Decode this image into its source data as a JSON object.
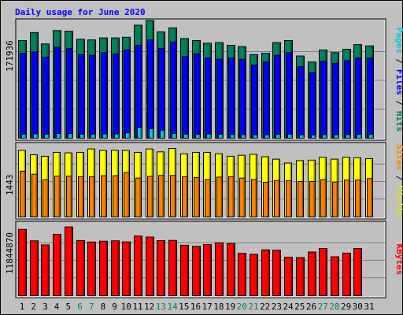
{
  "chart_data": {
    "type": "bar",
    "title": "Daily usage for June 2020",
    "categories": [
      "1",
      "2",
      "3",
      "4",
      "5",
      "6",
      "7",
      "8",
      "9",
      "10",
      "11",
      "12",
      "13",
      "14",
      "15",
      "16",
      "17",
      "18",
      "19",
      "20",
      "21",
      "22",
      "23",
      "24",
      "25",
      "26",
      "27",
      "28",
      "29",
      "30",
      "31"
    ],
    "weekend_days": [
      6,
      7,
      13,
      14,
      20,
      21,
      27,
      28
    ],
    "panels": [
      {
        "id": "hits-files-pages",
        "max_label": "171936",
        "ymax": 171936,
        "side_label": [
          {
            "text": "Pages",
            "color": "#00c8e0"
          },
          {
            "text": " / ",
            "color": "#000000"
          },
          {
            "text": "Files",
            "color": "#0000ff"
          },
          {
            "text": " / ",
            "color": "#000000"
          },
          {
            "text": "Hits",
            "color": "#00805c"
          }
        ],
        "series": [
          {
            "name": "Hits",
            "color": "#00805c",
            "values": [
              146000,
              158000,
              141000,
              161000,
              160000,
              148000,
              147000,
              150000,
              150000,
              151000,
              169000,
              176000,
              159000,
              165000,
              149000,
              146000,
              142000,
              143000,
              139000,
              137000,
              125000,
              127000,
              143000,
              146000,
              123000,
              114000,
              132000,
              128000,
              133000,
              140000,
              138000
            ]
          },
          {
            "name": "Files",
            "color": "#0000ff",
            "values": [
              127000,
              129000,
              121000,
              136000,
              134000,
              125000,
              124000,
              128000,
              126000,
              132000,
              139000,
              147000,
              134000,
              144000,
              122000,
              126000,
              120000,
              118000,
              120000,
              118000,
              109000,
              114000,
              124000,
              128000,
              107000,
              98000,
              115000,
              112000,
              116000,
              120000,
              120000
            ]
          },
          {
            "name": "Pages",
            "color": "#00c8e0",
            "values": [
              6000,
              6500,
              6000,
              7000,
              6800,
              6000,
              6000,
              6200,
              6300,
              8000,
              16000,
              14000,
              12000,
              6800,
              6000,
              5800,
              6100,
              5800,
              5600,
              5500,
              5000,
              5100,
              5800,
              6000,
              5000,
              4800,
              5500,
              5400,
              5600,
              5800,
              5700
            ]
          }
        ]
      },
      {
        "id": "visits-sites",
        "max_label": "1443",
        "ymax": 1443,
        "side_label": [
          {
            "text": "Sites",
            "color": "#ff8000"
          },
          {
            "text": " / ",
            "color": "#000000"
          },
          {
            "text": "Visits",
            "color": "#e0e000"
          }
        ],
        "series": [
          {
            "name": "Visits",
            "color": "#ffff00",
            "values": [
              1370,
              1280,
              1250,
              1330,
              1320,
              1330,
              1400,
              1370,
              1370,
              1370,
              1330,
              1400,
              1340,
              1410,
              1300,
              1330,
              1330,
              1300,
              1250,
              1270,
              1290,
              1240,
              1190,
              1110,
              1160,
              1170,
              1230,
              1190,
              1230,
              1220,
              1200
            ]
          },
          {
            "name": "Sites",
            "color": "#ff8000",
            "values": [
              943,
              880,
              770,
              840,
              840,
              830,
              830,
              850,
              850,
              915,
              800,
              835,
              855,
              855,
              830,
              810,
              770,
              820,
              830,
              800,
              770,
              715,
              750,
              745,
              730,
              730,
              770,
              720,
              760,
              760,
              790
            ]
          }
        ]
      },
      {
        "id": "kbytes",
        "max_label": "11844870",
        "ymax": 11844870,
        "side_label": [
          {
            "text": "KBytes",
            "color": "#ff0000"
          }
        ],
        "series": [
          {
            "name": "KBytes",
            "color": "#ff0000",
            "values": [
              11210000,
              9280000,
              8590000,
              10360000,
              11630000,
              9320000,
              9080000,
              9220000,
              9280000,
              9100000,
              10080000,
              9910000,
              9310000,
              9350000,
              8530000,
              8340000,
              8640000,
              8940000,
              8800000,
              7160000,
              6990000,
              7750000,
              7690000,
              6510000,
              6440000,
              7390000,
              7980000,
              6580000,
              7200000,
              7980000,
              null
            ]
          }
        ]
      }
    ]
  }
}
